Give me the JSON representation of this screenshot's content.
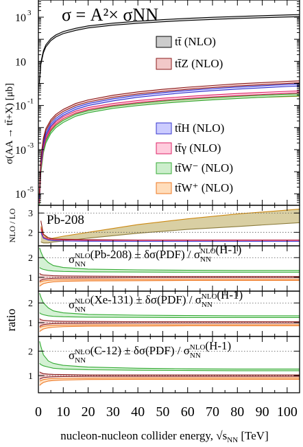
{
  "chart_data": [
    {
      "type": "line",
      "title": "σ = A²× σNN",
      "ylabel": "σ(AA → tt̄+X) [μb]",
      "yscale": "log",
      "ylim": [
        3e-06,
        6000
      ],
      "xlim": [
        0,
        105
      ],
      "y_ticks": [
        {
          "v": 1000,
          "base": "10",
          "exp": "3"
        },
        {
          "v": 10,
          "base": "10",
          "exp": ""
        },
        {
          "v": 0.1,
          "base": "10",
          "exp": "-1"
        },
        {
          "v": 0.001,
          "base": "10",
          "exp": "-3"
        },
        {
          "v": 1e-05,
          "base": "10",
          "exp": "-5"
        }
      ],
      "legend": [
        "tt̄ (NLO)",
        "tt̄Z (NLO)",
        "tt̄H (NLO)",
        "tt̄γ (NLO)",
        "tt̄W⁻ (NLO)",
        "tt̄W⁺ (NLO)"
      ],
      "series": [
        {
          "name": "tt̄ (NLO)",
          "color": "#000000",
          "fill": "#cccccc",
          "x": [
            0.4,
            1,
            2,
            3,
            5,
            7,
            10,
            15,
            20,
            30,
            40,
            50,
            60,
            70,
            80,
            90,
            100,
            105
          ],
          "y": [
            1.1,
            8,
            27,
            50,
            95,
            140,
            200,
            280,
            360,
            480,
            590,
            690,
            790,
            880,
            970,
            1050,
            1130,
            1170
          ]
        },
        {
          "name": "tt̄Z (NLO)",
          "color": "#8b1a1a",
          "fill": "#f2c8c8",
          "x": [
            0.4,
            1,
            2,
            3,
            5,
            7,
            10,
            15,
            20,
            30,
            40,
            50,
            60,
            70,
            80,
            90,
            100,
            105
          ],
          "y": [
            1e-05,
            0.0004,
            0.003,
            0.008,
            0.02,
            0.035,
            0.06,
            0.11,
            0.16,
            0.26,
            0.37,
            0.48,
            0.6,
            0.72,
            0.85,
            0.97,
            1.1,
            1.17
          ]
        },
        {
          "name": "tt̄H (NLO)",
          "color": "#3333cc",
          "fill": "#ccccff",
          "x": [
            0.4,
            1,
            2,
            3,
            5,
            7,
            10,
            15,
            20,
            30,
            40,
            50,
            60,
            70,
            80,
            90,
            100,
            105
          ],
          "y": [
            7e-06,
            0.00025,
            0.0019,
            0.005,
            0.013,
            0.023,
            0.04,
            0.074,
            0.11,
            0.18,
            0.26,
            0.34,
            0.43,
            0.52,
            0.61,
            0.7,
            0.8,
            0.85
          ]
        },
        {
          "name": "tt̄γ (NLO)",
          "color": "#dd2266",
          "fill": "#ffccdd",
          "x": [
            0.4,
            1,
            2,
            3,
            5,
            7,
            10,
            15,
            20,
            30,
            40,
            50,
            60,
            70,
            80,
            90,
            100,
            105
          ],
          "y": [
            4e-06,
            0.00015,
            0.0012,
            0.0033,
            0.009,
            0.016,
            0.028,
            0.05,
            0.072,
            0.11,
            0.15,
            0.19,
            0.23,
            0.27,
            0.31,
            0.35,
            0.39,
            0.41
          ]
        },
        {
          "name": "tt̄W⁻ (NLO)",
          "color": "#33aa33",
          "fill": "#cceecc",
          "x": [
            0.4,
            1,
            2,
            3,
            5,
            7,
            10,
            15,
            20,
            30,
            40,
            50,
            60,
            70,
            80,
            90,
            100,
            105
          ],
          "y": [
            3e-06,
            0.0001,
            0.0008,
            0.0022,
            0.006,
            0.011,
            0.019,
            0.036,
            0.052,
            0.082,
            0.11,
            0.14,
            0.17,
            0.2,
            0.23,
            0.26,
            0.29,
            0.3
          ]
        },
        {
          "name": "tt̄W⁺ (NLO)",
          "color": "#ee7722",
          "fill": "#ffddbb",
          "x": [
            0.4,
            1,
            2,
            3,
            5,
            7,
            10,
            15,
            20,
            30,
            40,
            50,
            60,
            70,
            80,
            90,
            100,
            105
          ],
          "y": [
            4e-06,
            0.00014,
            0.0011,
            0.003,
            0.008,
            0.014,
            0.024,
            0.044,
            0.062,
            0.095,
            0.125,
            0.155,
            0.185,
            0.21,
            0.235,
            0.26,
            0.28,
            0.29
          ]
        }
      ]
    },
    {
      "type": "area",
      "ylabel": "NLO / LO",
      "label": "Pb-208",
      "ylim": [
        1.3,
        3.4
      ],
      "y_ticks": [
        2,
        3
      ],
      "x": [
        1,
        2,
        4,
        6,
        10,
        20,
        40,
        60,
        80,
        105
      ],
      "band_low": [
        1.5,
        1.45,
        1.45,
        1.5,
        1.55,
        1.7,
        1.95,
        2.15,
        2.3,
        2.5
      ],
      "band_high": [
        2.3,
        1.9,
        1.65,
        1.7,
        1.8,
        2.0,
        2.4,
        2.7,
        2.95,
        3.2
      ],
      "curves": [
        {
          "color": "#8b1a1a",
          "y": [
            2.6,
            1.9,
            1.72,
            1.66,
            1.64,
            1.62,
            1.6,
            1.6,
            1.6,
            1.6
          ]
        },
        {
          "color": "#dd2266",
          "y": [
            2.2,
            1.75,
            1.65,
            1.62,
            1.6,
            1.58,
            1.58,
            1.58,
            1.58,
            1.58
          ]
        },
        {
          "color": "#3333cc",
          "y": [
            2.0,
            1.7,
            1.6,
            1.57,
            1.55,
            1.54,
            1.53,
            1.53,
            1.53,
            1.53
          ]
        }
      ]
    },
    {
      "type": "area",
      "ylabel": "ratio",
      "label": "σNLO NN(Pb-208) ± δσ(PDF) / σNLO NN(H-1)",
      "label_nucleus": "(Pb-208)",
      "ylim": [
        0.3,
        2.6
      ],
      "y_ticks": [
        1,
        2
      ],
      "x": [
        0.5,
        1,
        2,
        4,
        6,
        10,
        20,
        40,
        60,
        80,
        105
      ],
      "bands": [
        {
          "color": "#33aa33",
          "fill": "#cceecc",
          "low": [
            1.5,
            1.45,
            1.4,
            1.35,
            1.32,
            1.3,
            1.28,
            1.27,
            1.26,
            1.26,
            1.26
          ],
          "high": [
            2.5,
            2.3,
            2.0,
            1.75,
            1.6,
            1.5,
            1.42,
            1.38,
            1.36,
            1.35,
            1.35
          ]
        },
        {
          "color": "#8b1a1a",
          "fill": "#f2c8c8",
          "low": [
            0.8,
            0.85,
            0.9,
            0.93,
            0.95,
            0.96,
            0.97,
            0.98,
            0.98,
            0.98,
            0.98
          ],
          "high": [
            1.2,
            1.15,
            1.12,
            1.1,
            1.08,
            1.07,
            1.06,
            1.05,
            1.05,
            1.05,
            1.05
          ]
        },
        {
          "color": "#ee7722",
          "fill": "#ffddbb",
          "low": [
            0.55,
            0.6,
            0.68,
            0.74,
            0.77,
            0.8,
            0.82,
            0.83,
            0.84,
            0.84,
            0.84
          ],
          "high": [
            0.75,
            0.78,
            0.82,
            0.85,
            0.87,
            0.88,
            0.89,
            0.9,
            0.9,
            0.9,
            0.9
          ]
        }
      ]
    },
    {
      "type": "area",
      "ylabel": "ratio",
      "label": "σNLO NN(Xe-131) ± δσ(PDF) / σNLO NN(H-1)",
      "label_nucleus": "(Xe-131)",
      "ylim": [
        0.3,
        2.6
      ],
      "y_ticks": [
        1,
        2
      ],
      "x": [
        0.5,
        1,
        2,
        4,
        6,
        10,
        20,
        40,
        60,
        80,
        105
      ],
      "bands": [
        {
          "color": "#33aa33",
          "fill": "#cceecc",
          "low": [
            1.5,
            1.45,
            1.4,
            1.35,
            1.32,
            1.3,
            1.28,
            1.27,
            1.26,
            1.26,
            1.26
          ],
          "high": [
            2.5,
            2.3,
            2.0,
            1.75,
            1.6,
            1.5,
            1.42,
            1.38,
            1.36,
            1.35,
            1.35
          ]
        },
        {
          "color": "#8b1a1a",
          "fill": "#f2c8c8",
          "low": [
            0.8,
            0.85,
            0.9,
            0.93,
            0.95,
            0.96,
            0.97,
            0.98,
            0.98,
            0.98,
            0.98
          ],
          "high": [
            1.2,
            1.15,
            1.12,
            1.1,
            1.08,
            1.07,
            1.06,
            1.05,
            1.05,
            1.05,
            1.05
          ]
        },
        {
          "color": "#ee7722",
          "fill": "#ffddbb",
          "low": [
            0.55,
            0.6,
            0.68,
            0.74,
            0.77,
            0.8,
            0.82,
            0.83,
            0.84,
            0.84,
            0.84
          ],
          "high": [
            0.75,
            0.78,
            0.82,
            0.85,
            0.87,
            0.88,
            0.89,
            0.9,
            0.9,
            0.9,
            0.9
          ]
        }
      ]
    },
    {
      "type": "area",
      "ylabel": "",
      "label": "σNLO NN(C-12) ± δσ(PDF) / σNLO NN(H-1)",
      "label_nucleus": "(C-12)",
      "ylim": [
        0.3,
        2.6
      ],
      "y_ticks": [
        1,
        2
      ],
      "x_ticks": [
        0,
        10,
        20,
        30,
        40,
        50,
        60,
        70,
        80,
        90,
        100
      ],
      "xlabel": "nucleon-nucleon collider energy, √sNN [TeV]",
      "x": [
        0.5,
        1,
        2,
        4,
        6,
        10,
        20,
        40,
        60,
        80,
        105
      ],
      "bands": [
        {
          "color": "#33aa33",
          "fill": "#cceecc",
          "low": [
            1.5,
            1.45,
            1.4,
            1.35,
            1.3,
            1.27,
            1.24,
            1.22,
            1.21,
            1.2,
            1.2
          ],
          "high": [
            2.4,
            2.2,
            1.85,
            1.6,
            1.5,
            1.42,
            1.35,
            1.3,
            1.28,
            1.27,
            1.27
          ]
        },
        {
          "color": "#8b1a1a",
          "fill": "#f2c8c8",
          "low": [
            0.85,
            0.88,
            0.92,
            0.94,
            0.95,
            0.96,
            0.97,
            0.97,
            0.97,
            0.97,
            0.97
          ],
          "high": [
            1.15,
            1.12,
            1.08,
            1.06,
            1.05,
            1.04,
            1.03,
            1.03,
            1.03,
            1.03,
            1.03
          ]
        },
        {
          "color": "#ee7722",
          "fill": "#ffddbb",
          "low": [
            0.6,
            0.65,
            0.72,
            0.78,
            0.8,
            0.82,
            0.84,
            0.85,
            0.85,
            0.85,
            0.85
          ],
          "high": [
            0.78,
            0.8,
            0.84,
            0.87,
            0.88,
            0.89,
            0.9,
            0.91,
            0.91,
            0.91,
            0.91
          ]
        }
      ]
    }
  ]
}
